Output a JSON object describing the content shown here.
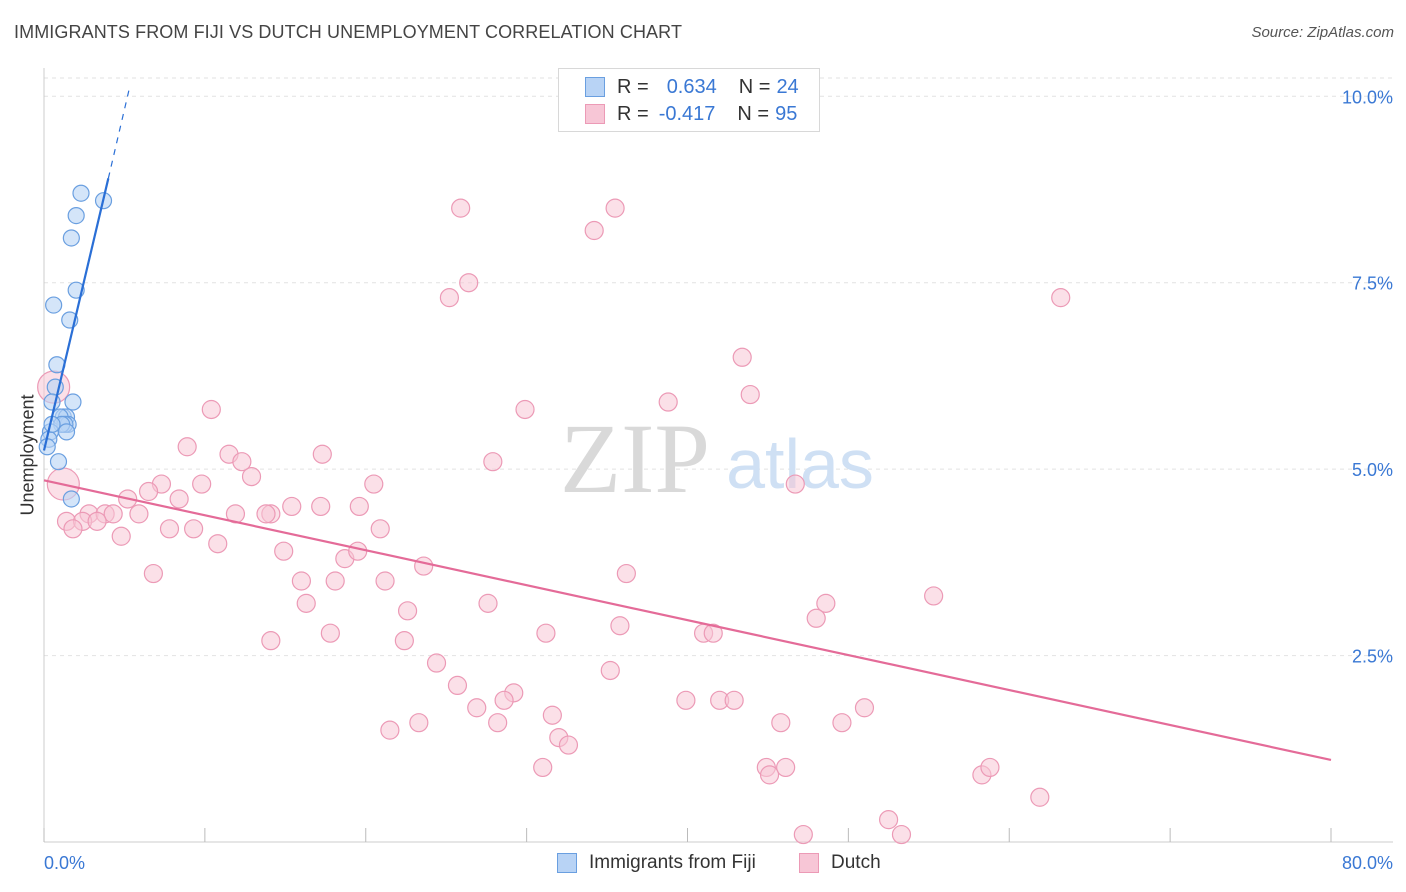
{
  "title": "IMMIGRANTS FROM FIJI VS DUTCH UNEMPLOYMENT CORRELATION CHART",
  "source": "Source: ZipAtlas.com",
  "watermark": {
    "zip": "ZIP",
    "atlas": "atlas"
  },
  "legend_top": {
    "rows": [
      {
        "r_label": "R =",
        "r_value": "0.634",
        "n_label": "N =",
        "n_value": "24"
      },
      {
        "r_label": "R =",
        "r_value": "-0.417",
        "n_label": "N =",
        "n_value": "95"
      }
    ]
  },
  "legend_bottom": {
    "series_1": "Immigrants from Fiji",
    "series_2": "Dutch"
  },
  "colors": {
    "fiji_fill": "#b8d3f5",
    "fiji_stroke": "#6a9fe0",
    "fiji_line": "#2a6fd6",
    "dutch_fill": "#f7c6d6",
    "dutch_stroke": "#ec9ab6",
    "dutch_line": "#e46b98",
    "tick_blue": "#3a78d4"
  },
  "chart_data": {
    "type": "scatter",
    "title": "IMMIGRANTS FROM FIJI VS DUTCH UNEMPLOYMENT CORRELATION CHART",
    "xlabel": "",
    "ylabel": "Unemployment",
    "xlim": [
      0,
      80
    ],
    "ylim": [
      0,
      10.5
    ],
    "x_tick_labels": [
      "0.0%",
      "80.0%"
    ],
    "y_ticks": [
      2.5,
      5.0,
      7.5,
      10.0
    ],
    "y_tick_labels": [
      "2.5%",
      "5.0%",
      "7.5%",
      "10.0%"
    ],
    "grid": true,
    "series": [
      {
        "name": "Immigrants from Fiji",
        "R": 0.634,
        "N": 24,
        "points": [
          [
            2.3,
            8.7
          ],
          [
            3.7,
            8.6
          ],
          [
            2.0,
            8.4
          ],
          [
            1.7,
            8.1
          ],
          [
            2.0,
            7.4
          ],
          [
            0.6,
            7.2
          ],
          [
            1.6,
            7.0
          ],
          [
            0.8,
            6.4
          ],
          [
            0.7,
            6.1
          ],
          [
            1.8,
            5.9
          ],
          [
            0.5,
            5.9
          ],
          [
            1.2,
            5.7
          ],
          [
            1.4,
            5.7
          ],
          [
            1.0,
            5.7
          ],
          [
            1.5,
            5.6
          ],
          [
            1.3,
            5.6
          ],
          [
            1.1,
            5.6
          ],
          [
            0.4,
            5.5
          ],
          [
            1.4,
            5.5
          ],
          [
            0.3,
            5.4
          ],
          [
            0.9,
            5.1
          ],
          [
            0.5,
            5.6
          ],
          [
            1.7,
            4.6
          ],
          [
            0.2,
            5.3
          ]
        ],
        "trend": {
          "x0": 0.0,
          "y0": 5.25,
          "x1": 4.0,
          "y1": 8.9,
          "dash_to_x": 5.3,
          "dash_to_y": 10.1
        }
      },
      {
        "name": "Dutch",
        "R": -0.417,
        "N": 95,
        "points": [
          [
            25.9,
            8.5
          ],
          [
            35.5,
            8.5
          ],
          [
            34.2,
            8.2
          ],
          [
            26.4,
            7.5
          ],
          [
            25.2,
            7.3
          ],
          [
            63.2,
            7.3
          ],
          [
            43.4,
            6.5
          ],
          [
            43.9,
            6.0
          ],
          [
            38.8,
            5.9
          ],
          [
            29.9,
            5.8
          ],
          [
            10.4,
            5.8
          ],
          [
            8.9,
            5.3
          ],
          [
            11.5,
            5.2
          ],
          [
            17.3,
            5.2
          ],
          [
            12.3,
            5.1
          ],
          [
            27.9,
            5.1
          ],
          [
            12.9,
            4.9
          ],
          [
            9.8,
            4.8
          ],
          [
            7.3,
            4.8
          ],
          [
            20.5,
            4.8
          ],
          [
            46.7,
            4.8
          ],
          [
            6.5,
            4.7
          ],
          [
            5.2,
            4.6
          ],
          [
            8.4,
            4.6
          ],
          [
            15.4,
            4.5
          ],
          [
            17.2,
            4.5
          ],
          [
            19.6,
            4.5
          ],
          [
            11.9,
            4.4
          ],
          [
            2.8,
            4.4
          ],
          [
            3.8,
            4.4
          ],
          [
            4.3,
            4.4
          ],
          [
            14.1,
            4.4
          ],
          [
            13.8,
            4.4
          ],
          [
            5.9,
            4.4
          ],
          [
            1.4,
            4.3
          ],
          [
            2.4,
            4.3
          ],
          [
            3.3,
            4.3
          ],
          [
            9.3,
            4.2
          ],
          [
            7.8,
            4.2
          ],
          [
            1.8,
            4.2
          ],
          [
            4.8,
            4.1
          ],
          [
            20.9,
            4.2
          ],
          [
            10.8,
            4.0
          ],
          [
            14.9,
            3.9
          ],
          [
            18.7,
            3.8
          ],
          [
            19.5,
            3.9
          ],
          [
            23.6,
            3.7
          ],
          [
            6.8,
            3.6
          ],
          [
            16.0,
            3.5
          ],
          [
            18.1,
            3.5
          ],
          [
            21.2,
            3.5
          ],
          [
            36.2,
            3.6
          ],
          [
            55.3,
            3.3
          ],
          [
            48.6,
            3.2
          ],
          [
            16.3,
            3.2
          ],
          [
            27.6,
            3.2
          ],
          [
            22.6,
            3.1
          ],
          [
            48.0,
            3.0
          ],
          [
            35.8,
            2.9
          ],
          [
            17.8,
            2.8
          ],
          [
            31.2,
            2.8
          ],
          [
            41.0,
            2.8
          ],
          [
            41.6,
            2.8
          ],
          [
            14.1,
            2.7
          ],
          [
            22.4,
            2.7
          ],
          [
            24.4,
            2.4
          ],
          [
            35.2,
            2.3
          ],
          [
            25.7,
            2.1
          ],
          [
            29.2,
            2.0
          ],
          [
            28.6,
            1.9
          ],
          [
            39.9,
            1.9
          ],
          [
            42.0,
            1.9
          ],
          [
            42.9,
            1.9
          ],
          [
            26.9,
            1.8
          ],
          [
            51.0,
            1.8
          ],
          [
            31.6,
            1.7
          ],
          [
            23.3,
            1.6
          ],
          [
            28.2,
            1.6
          ],
          [
            45.8,
            1.6
          ],
          [
            49.6,
            1.6
          ],
          [
            21.5,
            1.5
          ],
          [
            32.0,
            1.4
          ],
          [
            32.6,
            1.3
          ],
          [
            31.0,
            1.0
          ],
          [
            44.9,
            1.0
          ],
          [
            46.1,
            1.0
          ],
          [
            45.1,
            0.9
          ],
          [
            58.3,
            0.9
          ],
          [
            58.8,
            1.0
          ],
          [
            61.9,
            0.6
          ],
          [
            52.5,
            0.3
          ],
          [
            47.2,
            0.1
          ],
          [
            53.3,
            0.1
          ],
          [
            0.6,
            6.1
          ],
          [
            1.2,
            4.8
          ]
        ],
        "trend": {
          "x0": 0.0,
          "y0": 4.85,
          "x1": 80.0,
          "y1": 1.1
        }
      }
    ]
  }
}
